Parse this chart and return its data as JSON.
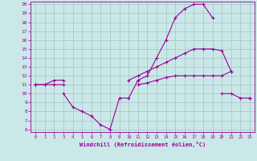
{
  "xlabel": "Windchill (Refroidissement éolien,°C)",
  "background_color": "#cbe8e8",
  "grid_color": "#aacccc",
  "line_color": "#990099",
  "x_hours": [
    0,
    1,
    2,
    3,
    4,
    5,
    6,
    7,
    8,
    9,
    10,
    11,
    12,
    13,
    14,
    15,
    16,
    17,
    18,
    19,
    20,
    21,
    22,
    23
  ],
  "line1": [
    11,
    11,
    11.5,
    11.5,
    null,
    null,
    null,
    null,
    null,
    null,
    null,
    11.5,
    12,
    14,
    16,
    18.5,
    19.5,
    20,
    20,
    18.5,
    null,
    null,
    null,
    null
  ],
  "line2": [
    11,
    null,
    11,
    null,
    null,
    null,
    null,
    null,
    null,
    null,
    11.5,
    12,
    12.5,
    13,
    13.5,
    14,
    14.5,
    15,
    15,
    15,
    14.8,
    12.5,
    null,
    null
  ],
  "line3": [
    11,
    11,
    11,
    11,
    null,
    null,
    null,
    null,
    null,
    null,
    null,
    11,
    11.2,
    11.5,
    11.8,
    12,
    12,
    12,
    12,
    12,
    12,
    12.5,
    null,
    9.5
  ],
  "line4": [
    null,
    null,
    null,
    10,
    8.5,
    8,
    7.5,
    6.5,
    6,
    9.5,
    9.5,
    11.5,
    null,
    null,
    null,
    null,
    null,
    null,
    null,
    null,
    10,
    10,
    9.5,
    9.5
  ],
  "ylim": [
    6,
    20
  ],
  "xlim": [
    -0.5,
    23.5
  ],
  "yticks": [
    6,
    7,
    8,
    9,
    10,
    11,
    12,
    13,
    14,
    15,
    16,
    17,
    18,
    19,
    20
  ],
  "xticks": [
    0,
    1,
    2,
    3,
    4,
    5,
    6,
    7,
    8,
    9,
    10,
    11,
    12,
    13,
    14,
    15,
    16,
    17,
    18,
    19,
    20,
    21,
    22,
    23
  ]
}
